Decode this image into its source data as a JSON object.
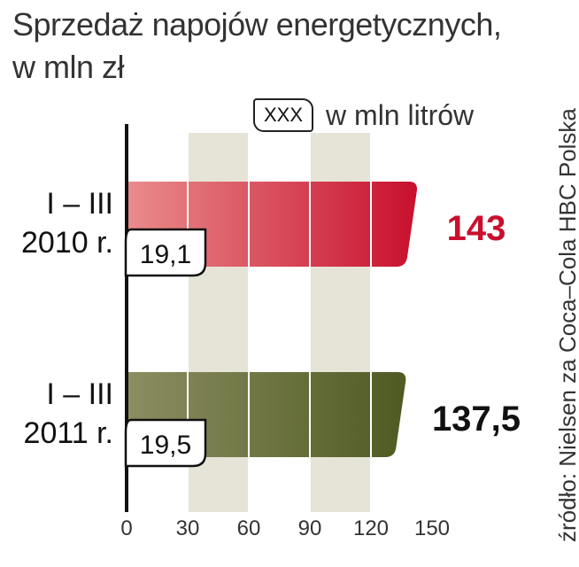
{
  "chart_data": {
    "type": "bar",
    "orientation": "horizontal",
    "title_lines": [
      "Sprzedaż napojów energetycznych,",
      "w mln zł"
    ],
    "legend": {
      "box_text": "XXX",
      "label": "w mln litrów"
    },
    "source": "źródło: Nielsen za Coca–Cola HBC Polska",
    "categories": [
      {
        "line1": "I – III",
        "line2": "2010 r."
      },
      {
        "line1": "I – III",
        "line2": "2011 r."
      }
    ],
    "values": [
      143,
      137.5
    ],
    "value_labels": [
      "143",
      "137,5"
    ],
    "volumes": [
      19.1,
      19.5
    ],
    "volume_labels": [
      "19,1",
      "19,5"
    ],
    "xlim": [
      0,
      150
    ],
    "ticks": [
      0,
      30,
      60,
      90,
      120,
      150
    ],
    "tick_labels": [
      "0",
      "30",
      "60",
      "90",
      "120",
      "150"
    ],
    "colors": {
      "bar_2010_start": "#e98c8c",
      "bar_2010_end": "#c8102e",
      "bar_2011_start": "#8c8e62",
      "bar_2011_end": "#4f5a22",
      "value_2010": "#c8102e",
      "value_2011": "#111111",
      "band": "#e6e4d6"
    }
  }
}
